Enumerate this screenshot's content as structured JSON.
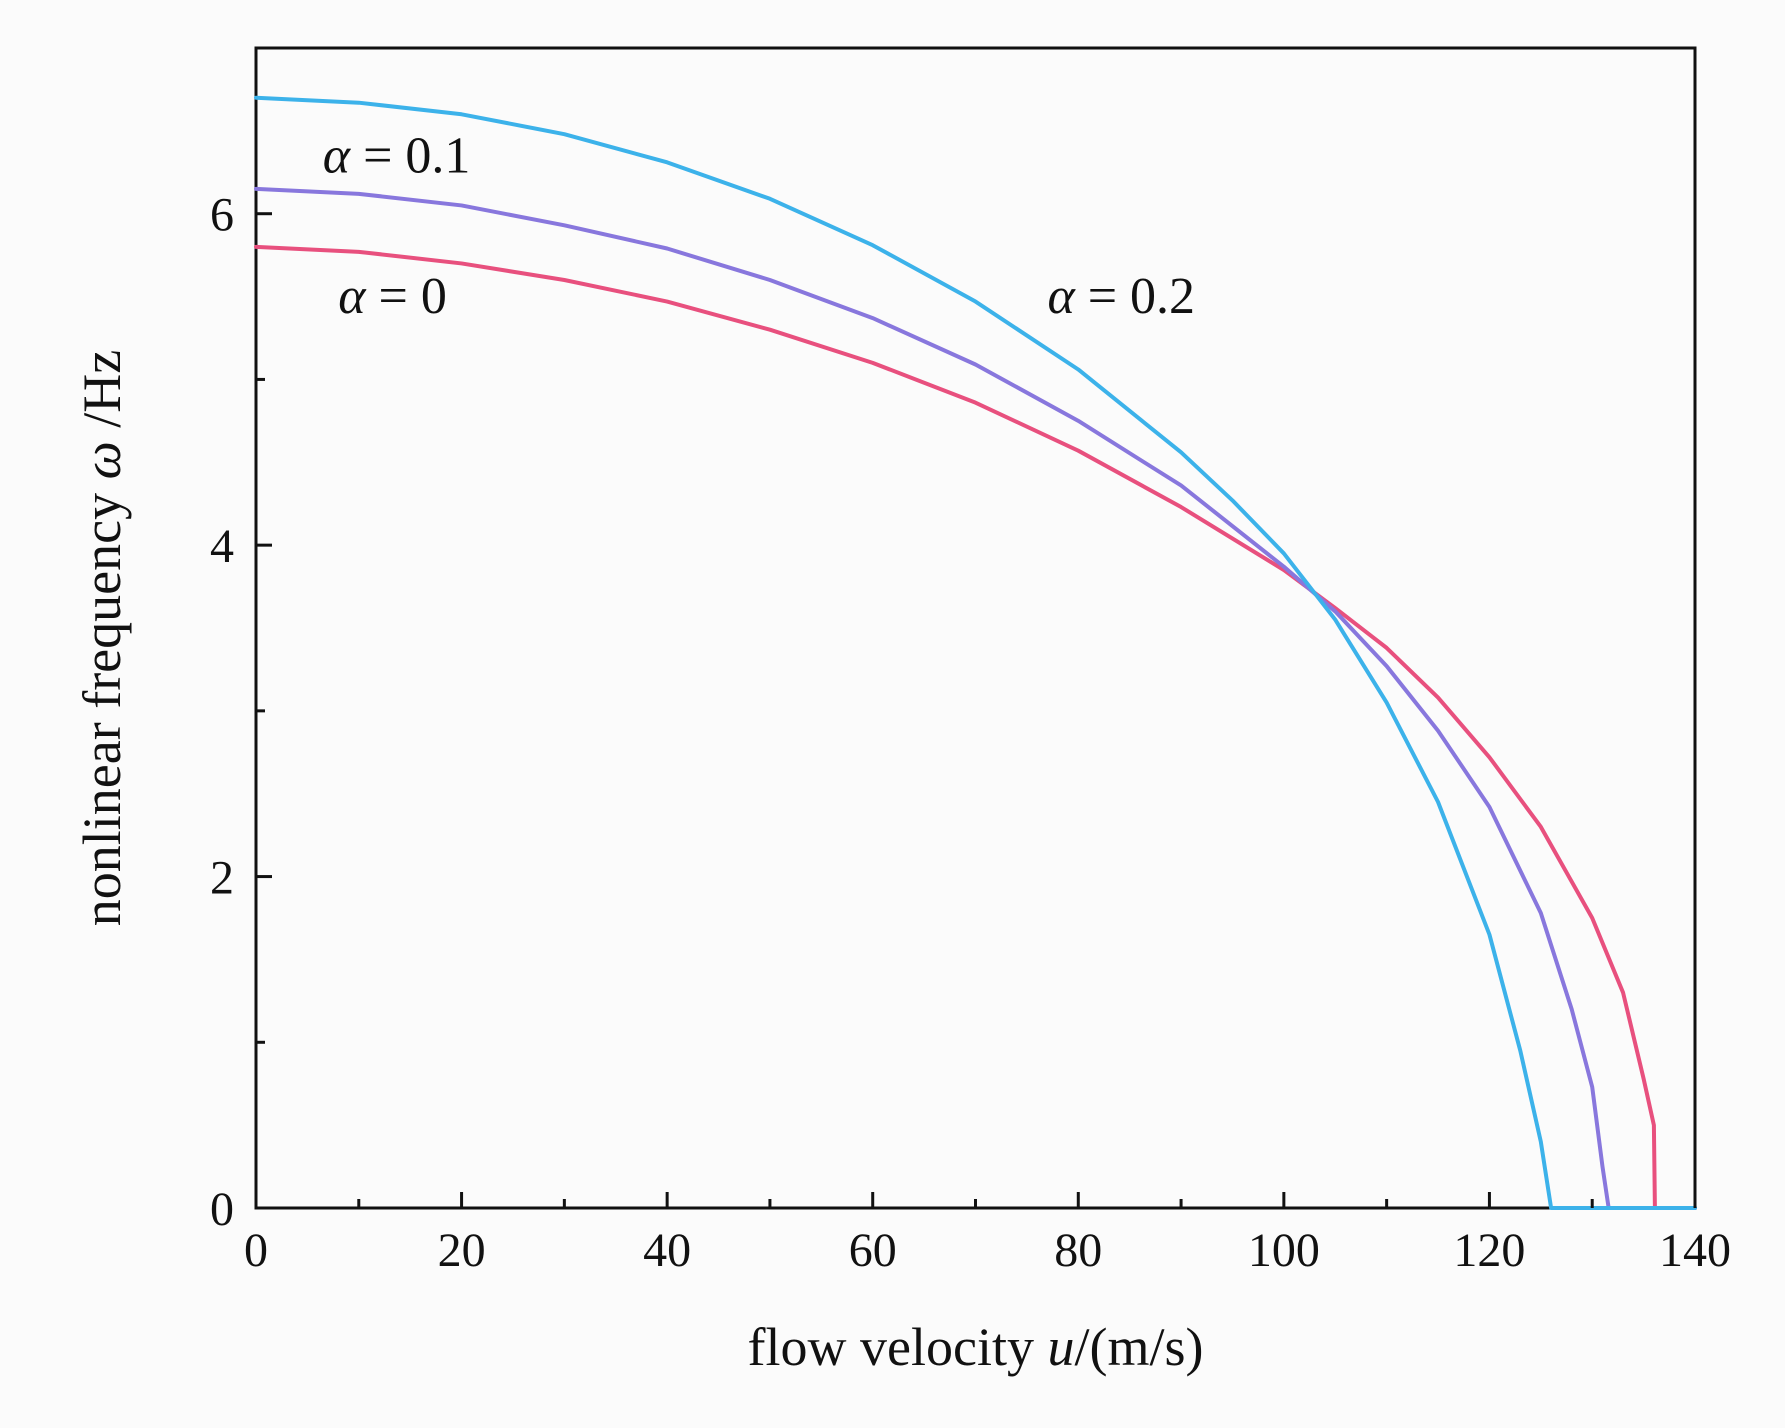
{
  "chart_data": {
    "type": "line",
    "title": "",
    "xlabel_parts": {
      "prefix": "flow velocity ",
      "var": "u",
      "suffix": "/(m/s)"
    },
    "ylabel_parts": {
      "prefix": "nonlinear frequency ",
      "var": "ω",
      "suffix": " /Hz"
    },
    "xlim": [
      0,
      140
    ],
    "ylim": [
      0,
      7
    ],
    "x_ticks": [
      0,
      20,
      40,
      60,
      80,
      100,
      120,
      140
    ],
    "y_ticks": [
      0,
      2,
      4,
      6
    ],
    "x_minor_ticks": [
      10,
      30,
      50,
      70,
      90,
      110,
      130
    ],
    "y_minor_ticks": [
      1,
      3,
      5
    ],
    "grid": false,
    "series": [
      {
        "name": "α = 0",
        "color": "#e8507e",
        "x": [
          0,
          10,
          20,
          30,
          40,
          50,
          60,
          70,
          80,
          90,
          100,
          105,
          110,
          115,
          120,
          125,
          130,
          133,
          135,
          136,
          136.1,
          140
        ],
        "y": [
          5.8,
          5.77,
          5.7,
          5.6,
          5.47,
          5.3,
          5.1,
          4.86,
          4.57,
          4.23,
          3.85,
          3.62,
          3.38,
          3.08,
          2.72,
          2.3,
          1.75,
          1.3,
          0.78,
          0.5,
          0,
          0
        ]
      },
      {
        "name": "α = 0.1",
        "color": "#8877dd",
        "x": [
          0,
          10,
          20,
          30,
          40,
          50,
          60,
          70,
          80,
          90,
          100,
          105,
          110,
          115,
          120,
          125,
          128,
          130,
          131,
          131.6,
          140
        ],
        "y": [
          6.15,
          6.12,
          6.05,
          5.93,
          5.79,
          5.6,
          5.37,
          5.09,
          4.75,
          4.36,
          3.87,
          3.6,
          3.27,
          2.88,
          2.42,
          1.78,
          1.2,
          0.73,
          0.25,
          0,
          0
        ]
      },
      {
        "name": "α = 0.2",
        "color": "#3cb2ea",
        "x": [
          0,
          10,
          20,
          30,
          40,
          50,
          60,
          70,
          80,
          90,
          95,
          100,
          105,
          110,
          115,
          120,
          123,
          125,
          126,
          140
        ],
        "y": [
          6.7,
          6.67,
          6.6,
          6.48,
          6.31,
          6.09,
          5.81,
          5.47,
          5.06,
          4.56,
          4.27,
          3.95,
          3.55,
          3.05,
          2.45,
          1.65,
          0.95,
          0.4,
          0,
          0
        ]
      }
    ],
    "annotations": [
      {
        "text": "α = 0.1",
        "greek": "α",
        "rest": " = 0.1",
        "x": 6.5,
        "y": 6.25
      },
      {
        "text": "α = 0",
        "greek": "α",
        "rest": " = 0",
        "x": 8,
        "y": 5.4
      },
      {
        "text": "α = 0.2",
        "greek": "α",
        "rest": " = 0.2",
        "x": 77,
        "y": 5.4
      }
    ]
  }
}
